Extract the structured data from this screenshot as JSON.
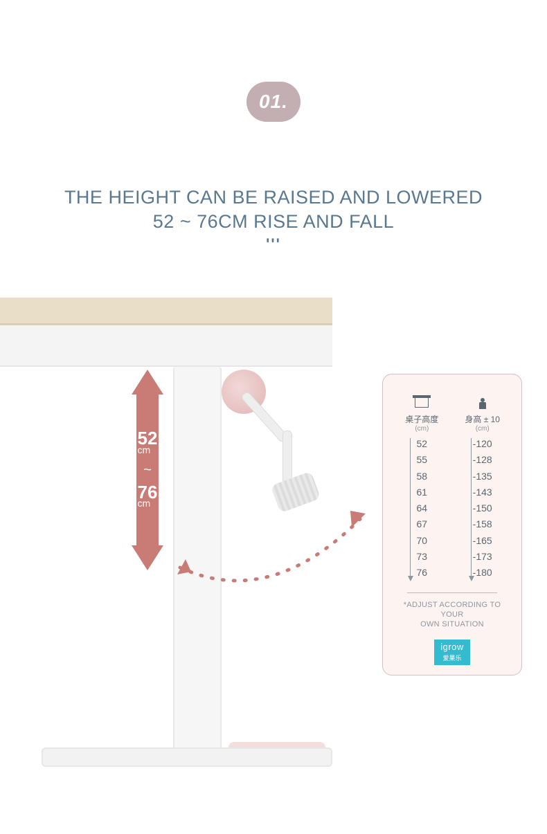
{
  "badge": {
    "number": "01."
  },
  "headline": {
    "line1": "THE HEIGHT CAN BE RAISED AND LOWERED",
    "line2": "52 ~ 76CM RISE AND FALL",
    "color": "#597890"
  },
  "height_arrow": {
    "min_value": "52",
    "min_unit": "cm",
    "separator": "~",
    "max_value": "76",
    "max_unit": "cm",
    "fill": "#c97b76"
  },
  "table_card": {
    "background": "#fdf3f1",
    "border_color": "#d3bfbf",
    "left_column": {
      "label": "桌子高度",
      "unit": "(cm)",
      "values": [
        "52",
        "55",
        "58",
        "61",
        "64",
        "67",
        "70",
        "73",
        "76"
      ]
    },
    "right_column": {
      "label": "身高 ± 10",
      "unit": "(cm)",
      "values": [
        "-120",
        "-128",
        "-135",
        "-143",
        "-150",
        "-158",
        "-165",
        "-173",
        "-180"
      ]
    },
    "note_line1": "*ADJUST ACCORDING TO YOUR",
    "note_line2": "OWN SITUATION",
    "brand_en": "igrow",
    "brand_cn": "爱果乐",
    "brand_bg": "#33bcd0"
  }
}
